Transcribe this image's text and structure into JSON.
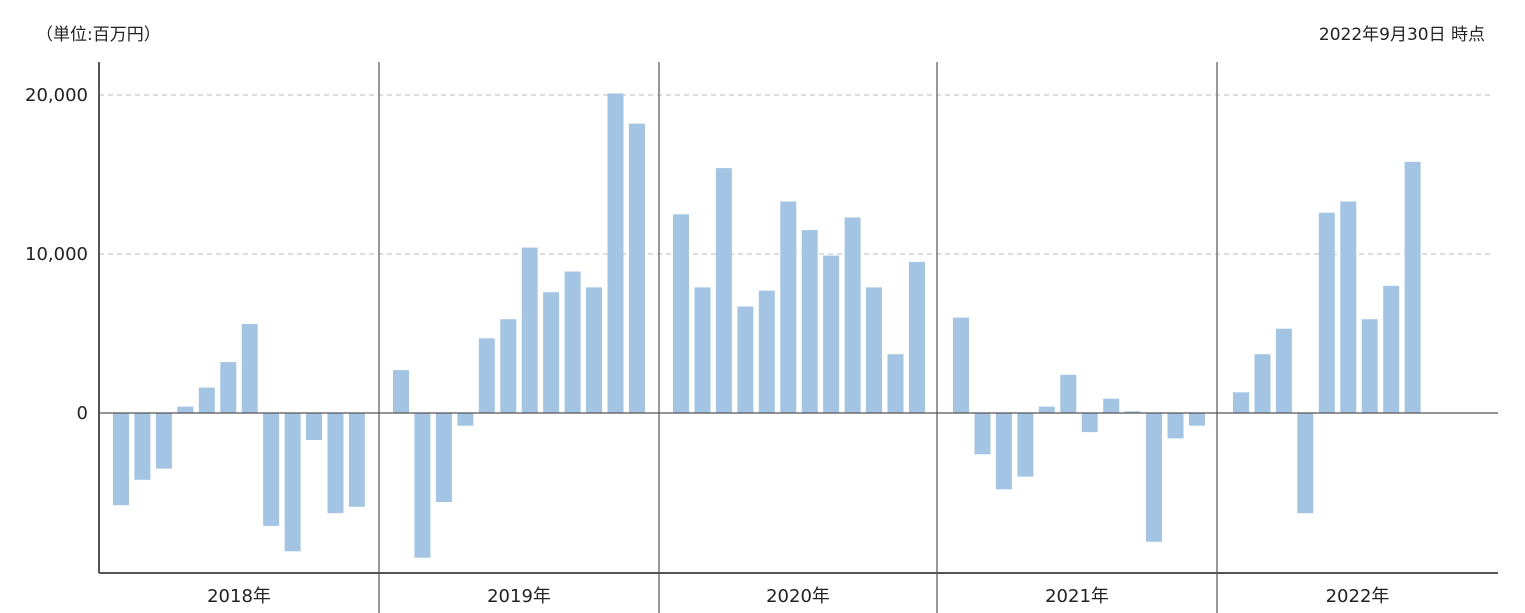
{
  "header": {
    "unit_label": "（単位:百万円）",
    "as_of_label": "2022年9月30日 時点"
  },
  "colors": {
    "bar": "#a4c4e4",
    "axis": "#555555",
    "grid": "#bbbbbb"
  },
  "chart_data": {
    "type": "bar",
    "title": "",
    "xlabel": "",
    "ylabel": "",
    "ylim": [
      -10000,
      20000
    ],
    "yticks": [
      {
        "value": 0,
        "label": "0"
      },
      {
        "value": 10000,
        "label": "10,000"
      },
      {
        "value": 20000,
        "label": "20,000"
      }
    ],
    "grid": "horizontal dashed",
    "years": [
      {
        "label": "2018年",
        "values": [
          -5800,
          -4200,
          -3500,
          400,
          1600,
          3200,
          5600,
          -7100,
          -8700,
          -1700,
          -6300,
          -5900
        ]
      },
      {
        "label": "2019年",
        "values": [
          2700,
          -9100,
          -5600,
          -800,
          4700,
          5900,
          10400,
          7600,
          8900,
          7900,
          20100,
          18200
        ]
      },
      {
        "label": "2020年",
        "values": [
          12500,
          7900,
          15400,
          6700,
          7700,
          13300,
          11500,
          9900,
          12300,
          7900,
          3700,
          9500
        ]
      },
      {
        "label": "2021年",
        "values": [
          6000,
          -2600,
          -4800,
          -4000,
          400,
          2400,
          -1200,
          900,
          100,
          -8100,
          -1600,
          -800
        ]
      },
      {
        "label": "2022年",
        "values": [
          1300,
          3700,
          5300,
          -6300,
          12600,
          13300,
          5900,
          8000,
          15800
        ]
      }
    ]
  }
}
